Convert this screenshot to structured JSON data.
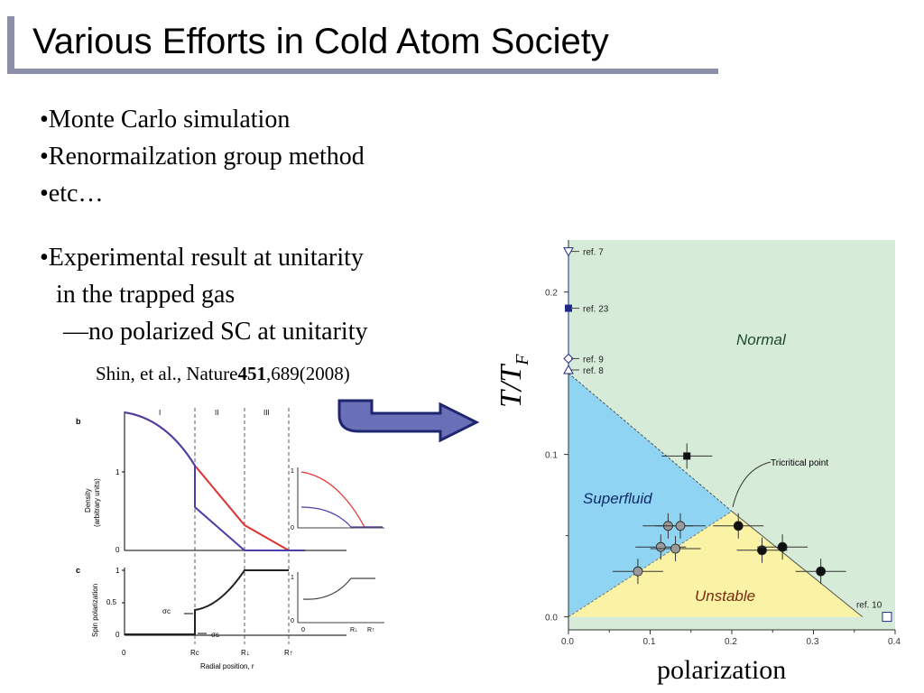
{
  "title": "Various Efforts in Cold Atom Society",
  "bullets": [
    "•Monte Carlo simulation",
    "•Renormailzation group method",
    "•etc…"
  ],
  "bullets2": [
    "•Experimental result at unitarity",
    "in the trapped gas",
    "—no polarized SC at unitarity"
  ],
  "citation": {
    "prefix": "Shin, et al., Nature",
    "volume": "451",
    "suffix": ",689(2008)"
  },
  "left_figure": {
    "panel_b_label": "b",
    "panel_c_label": "c",
    "regions": [
      "I",
      "II",
      "III"
    ],
    "density_ylabel_1": "Density",
    "density_ylabel_2": "(arbitrary units)",
    "spin_ylabel": "Spin polarization",
    "xlabel": "Radial position, r",
    "density_ticks": [
      "0",
      "1"
    ],
    "spin_ticks": [
      "0",
      "0.5",
      "1"
    ],
    "x_ticks": [
      "0",
      "Rc",
      "R↓",
      "R↑"
    ],
    "sigma_c": "σc",
    "sigma_s": "σs",
    "inset_ticks_x": [
      "0",
      "R↓",
      "R↑"
    ],
    "inset_ticks_y": [
      "0",
      "1"
    ]
  },
  "chart_data": {
    "type": "scatter",
    "xlabel": "polarization",
    "ylabel": "T/T",
    "ylabel_sub": "F",
    "xlim": [
      0.0,
      0.4
    ],
    "ylim": [
      -0.008,
      0.232
    ],
    "x_ticks": [
      "0.0",
      "0.1",
      "0.2",
      "0.3",
      "0.4"
    ],
    "y_ticks": [
      "0.0",
      "0.1",
      "0.2"
    ],
    "regions": [
      "Normal",
      "Superfluid",
      "Unstable"
    ],
    "annotation": "Tricritical point",
    "refs": [
      {
        "label": "ref. 7",
        "y": 0.225,
        "marker": "triangle-down"
      },
      {
        "label": "ref. 23",
        "y": 0.19,
        "marker": "square"
      },
      {
        "label": "ref. 9",
        "y": 0.159,
        "marker": "diamond"
      },
      {
        "label": "ref. 8",
        "y": 0.152,
        "marker": "triangle-up"
      },
      {
        "label": "ref. 10",
        "y": 0.0,
        "marker": "open-square",
        "x": 0.39
      }
    ],
    "black_points": [
      {
        "x": 0.145,
        "y": 0.099,
        "marker": "square"
      },
      {
        "x": 0.208,
        "y": 0.056
      },
      {
        "x": 0.237,
        "y": 0.041
      },
      {
        "x": 0.262,
        "y": 0.043
      },
      {
        "x": 0.309,
        "y": 0.028
      }
    ],
    "grey_points": [
      {
        "x": 0.122,
        "y": 0.056
      },
      {
        "x": 0.137,
        "y": 0.056
      },
      {
        "x": 0.113,
        "y": 0.043
      },
      {
        "x": 0.131,
        "y": 0.042
      },
      {
        "x": 0.085,
        "y": 0.028
      }
    ],
    "colors": {
      "normal": "#d6ecd9",
      "superfluid": "#8fd4f2",
      "unstable": "#faf3a6",
      "marker": "#1f2a8a"
    }
  }
}
